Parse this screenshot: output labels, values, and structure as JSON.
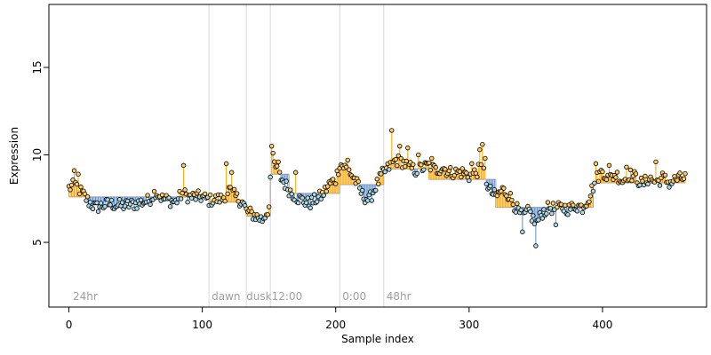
{
  "chart_data": {
    "type": "scatter",
    "title": "",
    "xlabel": "Sample index",
    "ylabel": "Expression",
    "xlim": [
      -15,
      478
    ],
    "ylim": [
      1.3,
      18.6
    ],
    "x_ticks": [
      0,
      100,
      200,
      300,
      400
    ],
    "y_ticks": [
      5,
      10,
      15
    ],
    "grid": false,
    "legend": "none",
    "colors": {
      "background": "#ffffff",
      "point_fill_above": "#ffcc66",
      "point_fill_below": "#add8e6",
      "segment_above": "#ffa500",
      "segment_below": "#5f8fd0",
      "baseline_step": "#a0a0a0",
      "divider": "#d8d8d8",
      "region_label": "#a0a0a0"
    },
    "dividers": [
      105,
      133,
      151,
      203,
      236
    ],
    "region_labels": [
      {
        "text": "24hr",
        "x": 3
      },
      {
        "text": "dawn",
        "x": 107
      },
      {
        "text": "dusk",
        "x": 133
      },
      {
        "text": "12:00",
        "x": 152
      },
      {
        "text": "0:00",
        "x": 205
      },
      {
        "text": "48hr",
        "x": 238
      }
    ],
    "segments": [
      {
        "x_start": 0,
        "x_end": 105,
        "baseline": 7.6
      },
      {
        "x_start": 105,
        "x_end": 133,
        "baseline": 7.3
      },
      {
        "x_start": 133,
        "x_end": 151,
        "baseline": 6.5
      },
      {
        "x_start": 151,
        "x_end": 165,
        "baseline": 8.9
      },
      {
        "x_start": 165,
        "x_end": 203,
        "baseline": 7.8
      },
      {
        "x_start": 203,
        "x_end": 236,
        "baseline": 8.3
      },
      {
        "x_start": 236,
        "x_end": 270,
        "baseline": 9.2
      },
      {
        "x_start": 270,
        "x_end": 320,
        "baseline": 8.6
      },
      {
        "x_start": 320,
        "x_end": 393,
        "baseline": 7.0
      },
      {
        "x_start": 393,
        "x_end": 462,
        "baseline": 8.4
      }
    ],
    "anchors": [
      [
        0,
        8.1
      ],
      [
        5,
        8.3
      ],
      [
        10,
        7.8
      ],
      [
        15,
        7.3
      ],
      [
        20,
        7.0
      ],
      [
        30,
        7.2
      ],
      [
        40,
        7.1
      ],
      [
        50,
        7.2
      ],
      [
        60,
        7.4
      ],
      [
        65,
        7.9
      ],
      [
        70,
        7.5
      ],
      [
        80,
        7.3
      ],
      [
        85,
        7.8
      ],
      [
        90,
        7.6
      ],
      [
        100,
        7.6
      ],
      [
        105,
        7.4
      ],
      [
        115,
        7.5
      ],
      [
        120,
        8.0
      ],
      [
        125,
        7.6
      ],
      [
        130,
        7.3
      ],
      [
        133,
        6.8
      ],
      [
        140,
        6.5
      ],
      [
        145,
        6.3
      ],
      [
        148,
        6.7
      ],
      [
        150,
        7.0
      ],
      [
        152,
        9.8
      ],
      [
        158,
        8.8
      ],
      [
        165,
        8.0
      ],
      [
        170,
        7.6
      ],
      [
        180,
        7.2
      ],
      [
        190,
        7.7
      ],
      [
        195,
        8.3
      ],
      [
        200,
        8.6
      ],
      [
        203,
        9.5
      ],
      [
        210,
        9.1
      ],
      [
        215,
        8.5
      ],
      [
        220,
        7.7
      ],
      [
        225,
        7.4
      ],
      [
        230,
        8.2
      ],
      [
        235,
        8.9
      ],
      [
        240,
        9.3
      ],
      [
        245,
        9.7
      ],
      [
        250,
        9.6
      ],
      [
        255,
        9.3
      ],
      [
        260,
        9.1
      ],
      [
        270,
        9.4
      ],
      [
        275,
        9.1
      ],
      [
        280,
        9.3
      ],
      [
        285,
        9.0
      ],
      [
        295,
        9.0
      ],
      [
        300,
        8.8
      ],
      [
        305,
        9.0
      ],
      [
        310,
        9.3
      ],
      [
        315,
        8.0
      ],
      [
        320,
        7.6
      ],
      [
        325,
        8.0
      ],
      [
        330,
        7.7
      ],
      [
        335,
        7.0
      ],
      [
        340,
        6.4
      ],
      [
        345,
        6.8
      ],
      [
        350,
        6.0
      ],
      [
        355,
        6.7
      ],
      [
        360,
        7.0
      ],
      [
        365,
        6.9
      ],
      [
        370,
        7.0
      ],
      [
        375,
        6.9
      ],
      [
        380,
        7.1
      ],
      [
        385,
        7.0
      ],
      [
        390,
        7.6
      ],
      [
        395,
        8.6
      ],
      [
        400,
        9.1
      ],
      [
        405,
        8.6
      ],
      [
        410,
        8.9
      ],
      [
        415,
        8.5
      ],
      [
        420,
        8.9
      ],
      [
        425,
        8.7
      ],
      [
        430,
        8.3
      ],
      [
        435,
        8.7
      ],
      [
        440,
        8.4
      ],
      [
        445,
        8.7
      ],
      [
        450,
        8.4
      ],
      [
        455,
        8.6
      ],
      [
        462,
        8.7
      ]
    ],
    "spikes": [
      [
        4,
        9.1
      ],
      [
        7,
        8.9
      ],
      [
        86,
        9.4
      ],
      [
        118,
        9.5
      ],
      [
        122,
        9.0
      ],
      [
        152,
        10.5
      ],
      [
        153,
        10.1
      ],
      [
        157,
        9.6
      ],
      [
        170,
        9.0
      ],
      [
        209,
        9.7
      ],
      [
        242,
        11.4
      ],
      [
        248,
        10.5
      ],
      [
        254,
        10.4
      ],
      [
        262,
        10.0
      ],
      [
        272,
        9.8
      ],
      [
        302,
        9.5
      ],
      [
        308,
        10.3
      ],
      [
        310,
        10.6
      ],
      [
        312,
        9.8
      ],
      [
        340,
        5.6
      ],
      [
        350,
        4.8
      ],
      [
        365,
        6.0
      ],
      [
        395,
        9.5
      ],
      [
        405,
        9.4
      ],
      [
        418,
        9.3
      ],
      [
        440,
        9.6
      ]
    ]
  }
}
